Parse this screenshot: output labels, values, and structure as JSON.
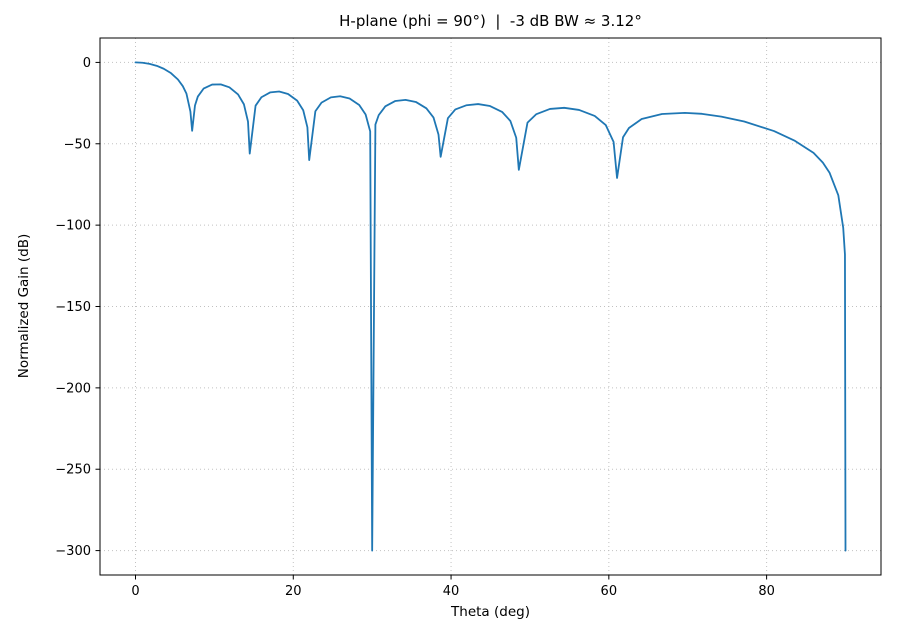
{
  "chart_data": {
    "type": "line",
    "title": "H-plane (phi = 90°)  |  -3 dB BW ≈ 3.12°",
    "xlabel": "Theta (deg)",
    "ylabel": "Normalized Gain (dB)",
    "xlim": [
      -4.5,
      94.5
    ],
    "ylim": [
      -315,
      15
    ],
    "grid": true,
    "legend": "none",
    "line_color": "#1f77b4",
    "background_color": "#ffffff",
    "xticks": {
      "values": [
        0,
        20,
        40,
        60,
        80
      ],
      "labels": [
        "0",
        "20",
        "40",
        "60",
        "80"
      ]
    },
    "yticks": {
      "values": [
        0,
        -50,
        -100,
        -150,
        -200,
        -250,
        -300
      ],
      "labels": [
        "0",
        "−50",
        "−100",
        "−150",
        "−200",
        "−250",
        "−300"
      ]
    },
    "series": [
      {
        "name": "normalized-gain-vs-theta",
        "color": "#1f77b4",
        "points": [
          [
            0.0,
            0.0
          ],
          [
            0.9,
            -0.2
          ],
          [
            1.79,
            -0.9
          ],
          [
            2.7,
            -2.1
          ],
          [
            3.58,
            -3.9
          ],
          [
            4.5,
            -6.6
          ],
          [
            5.38,
            -10.5
          ],
          [
            6.0,
            -14.6
          ],
          [
            6.46,
            -19.2
          ],
          [
            6.96,
            -30.2
          ],
          [
            7.18,
            -42.0
          ],
          [
            7.54,
            -26.5
          ],
          [
            7.9,
            -21.0
          ],
          [
            8.63,
            -16.1
          ],
          [
            9.71,
            -13.6
          ],
          [
            10.81,
            -13.5
          ],
          [
            11.9,
            -15.3
          ],
          [
            13.0,
            -19.7
          ],
          [
            13.74,
            -25.7
          ],
          [
            14.26,
            -36.4
          ],
          [
            14.48,
            -56.0
          ],
          [
            15.22,
            -26.6
          ],
          [
            15.96,
            -21.4
          ],
          [
            17.09,
            -18.4
          ],
          [
            18.21,
            -17.9
          ],
          [
            19.34,
            -19.4
          ],
          [
            20.49,
            -23.5
          ],
          [
            21.26,
            -29.4
          ],
          [
            21.79,
            -39.9
          ],
          [
            22.02,
            -60.0
          ],
          [
            22.8,
            -30.0
          ],
          [
            23.58,
            -24.7
          ],
          [
            24.76,
            -21.5
          ],
          [
            25.94,
            -20.8
          ],
          [
            27.14,
            -22.2
          ],
          [
            28.36,
            -26.2
          ],
          [
            29.17,
            -32.0
          ],
          [
            29.75,
            -42.4
          ],
          [
            30.0,
            -300.0
          ],
          [
            30.41,
            -38.2
          ],
          [
            30.83,
            -32.4
          ],
          [
            31.67,
            -27.0
          ],
          [
            32.94,
            -23.7
          ],
          [
            34.23,
            -23.0
          ],
          [
            35.54,
            -24.3
          ],
          [
            36.87,
            -28.2
          ],
          [
            37.78,
            -33.9
          ],
          [
            38.41,
            -44.4
          ],
          [
            38.68,
            -58.0
          ],
          [
            39.6,
            -34.3
          ],
          [
            40.54,
            -28.9
          ],
          [
            41.97,
            -26.3
          ],
          [
            43.43,
            -25.6
          ],
          [
            44.94,
            -26.8
          ],
          [
            46.47,
            -30.4
          ],
          [
            47.52,
            -36.0
          ],
          [
            48.26,
            -46.3
          ],
          [
            48.59,
            -66.0
          ],
          [
            49.69,
            -37.0
          ],
          [
            50.81,
            -31.8
          ],
          [
            52.54,
            -28.6
          ],
          [
            54.34,
            -27.9
          ],
          [
            56.23,
            -29.2
          ],
          [
            58.21,
            -32.9
          ],
          [
            59.61,
            -38.5
          ],
          [
            60.6,
            -48.8
          ],
          [
            61.04,
            -71.0
          ],
          [
            61.8,
            -46.0
          ],
          [
            62.55,
            -40.3
          ],
          [
            64.16,
            -34.8
          ],
          [
            66.74,
            -31.7
          ],
          [
            69.64,
            -31.0
          ],
          [
            71.81,
            -31.6
          ],
          [
            74.26,
            -33.3
          ],
          [
            77.16,
            -36.3
          ],
          [
            80.94,
            -42.2
          ],
          [
            83.59,
            -48.2
          ],
          [
            85.95,
            -55.6
          ],
          [
            87.13,
            -61.6
          ],
          [
            87.97,
            -67.7
          ],
          [
            89.09,
            -81.7
          ],
          [
            89.71,
            -101.6
          ],
          [
            89.93,
            -118.0
          ],
          [
            90.0,
            -300.0
          ]
        ]
      }
    ]
  }
}
